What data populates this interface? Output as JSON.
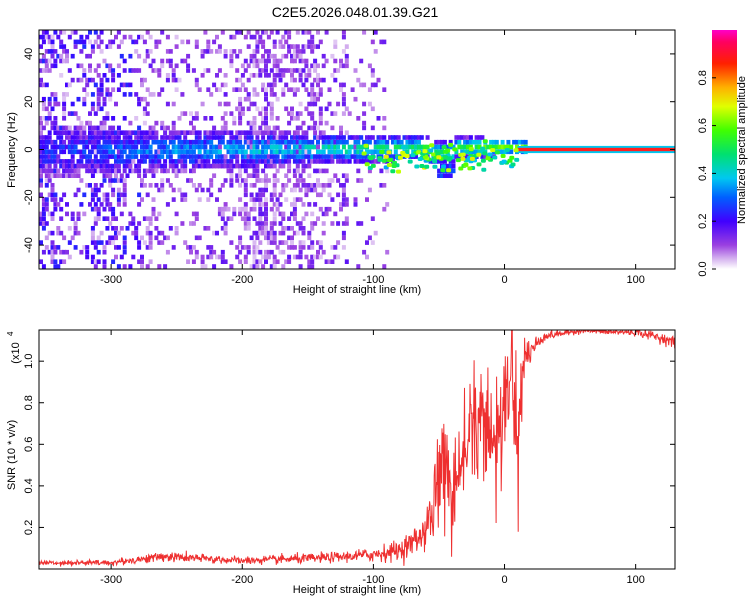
{
  "title": "C2E5.2026.048.01.39.G21",
  "chart_data": [
    {
      "type": "heatmap",
      "xlabel": "Height of straight line (km)",
      "ylabel": "Frequency (Hz)",
      "xlim": [
        -355,
        130
      ],
      "ylim": [
        -50,
        50
      ],
      "xticks": [
        -300,
        -200,
        -100,
        0,
        100
      ],
      "yticks": [
        -40,
        -20,
        0,
        20,
        40
      ],
      "colorbar": {
        "label": "Normalized spectral amplitude",
        "range": [
          0,
          1
        ],
        "ticks": [
          "0.0",
          "0.2",
          "0.4",
          "0.6",
          "0.8"
        ],
        "tick_values": [
          0.0,
          0.2,
          0.4,
          0.6,
          0.8
        ],
        "colormap": "rainbow (white→violet→blue→cyan→green→yellow→orange→red→magenta)"
      },
      "features": {
        "signal_band_center_hz": 0,
        "steady_tone_start_km": 10,
        "steady_tone_color": "#ff2020",
        "noise_region_km": [
          -355,
          -120
        ]
      }
    },
    {
      "type": "line",
      "xlabel": "Height of straight line (km)",
      "ylabel": "SNR (10 * v/v)",
      "y_multiplier_label": "(x10",
      "y_multiplier_exp": "4",
      "xlim": [
        -355,
        130
      ],
      "ylim": [
        0,
        1.15
      ],
      "xticks": [
        -300,
        -200,
        -100,
        0,
        100
      ],
      "yticks": [
        0.2,
        0.4,
        0.6,
        0.8,
        1.0
      ],
      "ytick_labels": [
        "0.2",
        "0.4",
        "0.6",
        "0.8",
        "1.0"
      ],
      "series": [
        {
          "color": "#ee3030",
          "x": [
            -355,
            -300,
            -260,
            -200,
            -150,
            -120,
            -100,
            -80,
            -65,
            -55,
            -50,
            -45,
            -40,
            -35,
            -30,
            -25,
            -20,
            -15,
            -10,
            -5,
            0,
            5,
            10,
            15,
            20,
            30,
            40,
            60,
            80,
            100,
            115,
            130
          ],
          "y": [
            0.03,
            0.03,
            0.06,
            0.04,
            0.05,
            0.06,
            0.07,
            0.09,
            0.15,
            0.25,
            0.45,
            0.55,
            0.35,
            0.4,
            0.6,
            0.72,
            0.62,
            0.75,
            0.55,
            0.7,
            0.8,
            1.0,
            0.6,
            1.02,
            1.05,
            1.12,
            1.13,
            1.15,
            1.14,
            1.14,
            1.12,
            1.09
          ],
          "noise_amplitude": [
            0.01,
            0.012,
            0.02,
            0.015,
            0.02,
            0.02,
            0.03,
            0.04,
            0.06,
            0.1,
            0.15,
            0.18,
            0.15,
            0.15,
            0.2,
            0.22,
            0.2,
            0.2,
            0.2,
            0.2,
            0.2,
            0.2,
            0.25,
            0.1,
            0.05,
            0.02,
            0.015,
            0.012,
            0.012,
            0.015,
            0.02,
            0.02
          ]
        }
      ]
    }
  ]
}
